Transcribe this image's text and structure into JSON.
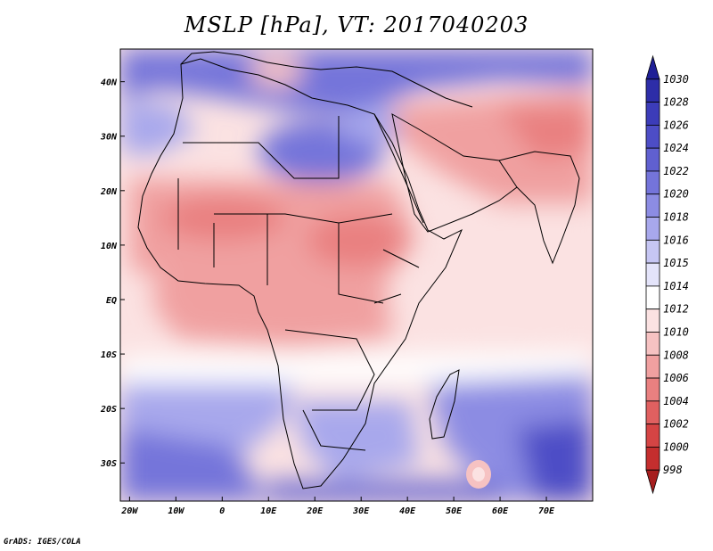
{
  "title": "MSLP [hPa], VT: 2017040203",
  "credit": "GrADS: IGES/COLA",
  "map": {
    "lon_range": [
      -22,
      80
    ],
    "lat_range": [
      -37,
      46
    ],
    "lon_ticks": [
      {
        "lon": -20,
        "label": "20W"
      },
      {
        "lon": -10,
        "label": "10W"
      },
      {
        "lon": 0,
        "label": "0"
      },
      {
        "lon": 10,
        "label": "10E"
      },
      {
        "lon": 20,
        "label": "20E"
      },
      {
        "lon": 30,
        "label": "30E"
      },
      {
        "lon": 40,
        "label": "40E"
      },
      {
        "lon": 50,
        "label": "50E"
      },
      {
        "lon": 60,
        "label": "60E"
      },
      {
        "lon": 70,
        "label": "70E"
      }
    ],
    "lat_ticks": [
      {
        "lat": 40,
        "label": "40N"
      },
      {
        "lat": 30,
        "label": "30N"
      },
      {
        "lat": 20,
        "label": "20N"
      },
      {
        "lat": 10,
        "label": "10N"
      },
      {
        "lat": 0,
        "label": "EQ"
      },
      {
        "lat": -10,
        "label": "10S"
      },
      {
        "lat": -20,
        "label": "20S"
      },
      {
        "lat": -30,
        "label": "30S"
      }
    ]
  },
  "colorbar": {
    "levels": [
      "1030",
      "1028",
      "1026",
      "1024",
      "1022",
      "1020",
      "1018",
      "1016",
      "1015",
      "1014",
      "1012",
      "1010",
      "1008",
      "1006",
      "1004",
      "1002",
      "1000",
      "998"
    ],
    "colors": [
      "#1f1f96",
      "#2d2da8",
      "#3c3cb9",
      "#4d4dc6",
      "#6060d0",
      "#7474da",
      "#8c8ce3",
      "#a8a8ec",
      "#c6c6f3",
      "#e4e4fa",
      "#ffffff",
      "#fbe2e2",
      "#f6c2c2",
      "#f0a0a0",
      "#e98080",
      "#e06060",
      "#d54444",
      "#c42e2e",
      "#a61e1e"
    ]
  }
}
